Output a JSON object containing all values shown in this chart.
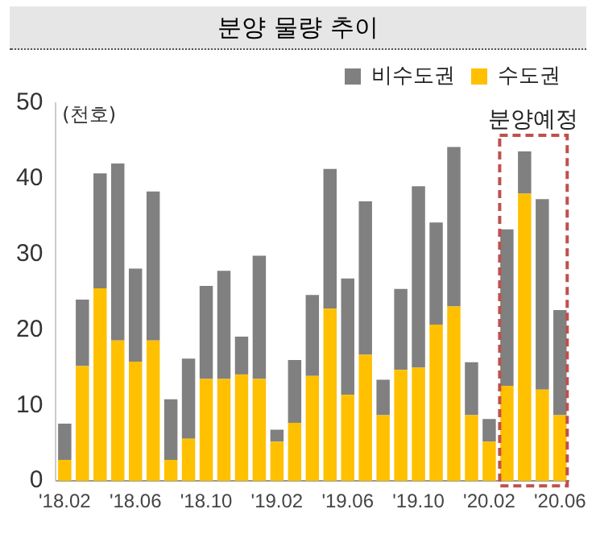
{
  "chart_data": {
    "type": "bar",
    "title": "분양 물량 추이",
    "ylabel": "(천호)",
    "stacked": true,
    "categories": [
      "'18.02",
      null,
      null,
      null,
      "'18.06",
      null,
      null,
      null,
      "'18.10",
      null,
      null,
      null,
      "'19.02",
      null,
      null,
      null,
      "'19.06",
      null,
      null,
      null,
      "'19.10",
      null,
      null,
      null,
      "'20.02",
      null,
      null,
      null,
      "'20.06"
    ],
    "series": [
      {
        "name": "수도권",
        "color": "#ffc000",
        "values": [
          2.8,
          15.2,
          25.5,
          18.6,
          15.8,
          18.6,
          2.8,
          5.6,
          13.5,
          13.5,
          14.1,
          13.5,
          5.2,
          7.7,
          13.9,
          22.8,
          11.4,
          16.7,
          8.7,
          14.7,
          15.0,
          20.7,
          23.1,
          8.7,
          5.2,
          12.6,
          38.0,
          12.1,
          8.7
        ]
      },
      {
        "name": "비수도권",
        "color": "#808080",
        "values": [
          4.8,
          8.8,
          15.2,
          23.4,
          12.3,
          19.7,
          8.0,
          10.6,
          12.3,
          14.3,
          5.0,
          16.3,
          1.6,
          8.3,
          10.7,
          18.5,
          15.4,
          20.3,
          4.7,
          10.7,
          24.0,
          13.5,
          21.1,
          7.0,
          3.0,
          20.7,
          5.6,
          25.2,
          13.9
        ]
      }
    ],
    "ylim": [
      0,
      50
    ],
    "yticks": [
      0,
      10,
      20,
      30,
      40,
      50
    ],
    "grid": false,
    "legend": "top right",
    "annotations": [
      "분양예정"
    ]
  }
}
